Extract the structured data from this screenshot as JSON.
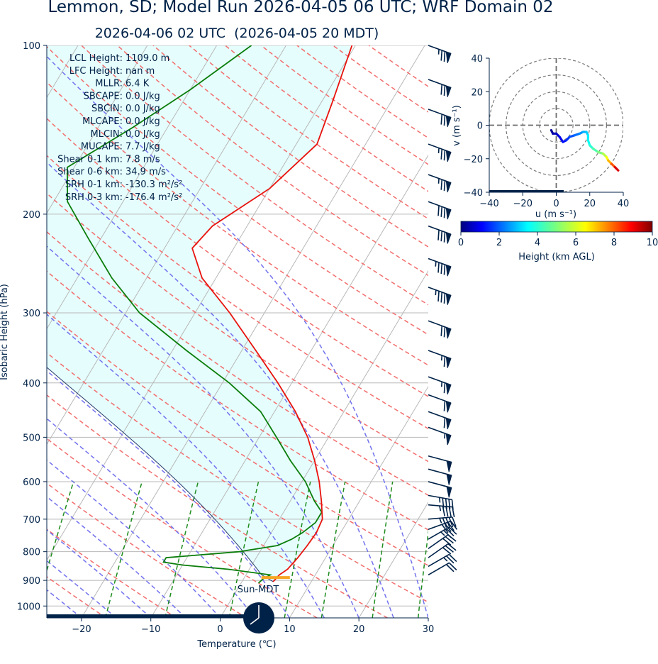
{
  "title": "Lemmon, SD; Model Run 2026-04-05 06 UTC; WRF Domain 02",
  "subtitle": "2026-04-06 02 UTC  (2026-04-05 20 MDT)",
  "colors": {
    "text": "#002248",
    "temperature": "#e8120c",
    "dewpoint": "#0a7d0a",
    "parcel_shade": "#e6fdfd",
    "dry_adiabat": "#f26d6d",
    "moist_adiabat": "#7272ee",
    "mixing_ratio": "#1e8c1e",
    "isotherm": "#b8b8b8",
    "surface": "#f6a623"
  },
  "skewt": {
    "xlabel": "Temperature (℃)",
    "ylabel": "Isobaric Height (hPa)",
    "xlim": [
      -25,
      30
    ],
    "ylim": [
      1050,
      100
    ],
    "xticks": [
      -20,
      -10,
      0,
      10,
      20,
      30
    ],
    "yticks": [
      100,
      200,
      300,
      400,
      500,
      600,
      700,
      800,
      900,
      1000
    ],
    "surface_label": "Sun-MDT",
    "stats": [
      {
        "label": "LCL Height:",
        "value": "1109.0 m"
      },
      {
        "label": "LFC Height:",
        "value": "nan m"
      },
      {
        "label": "MLLR:",
        "value": "6.4 K"
      },
      {
        "label": "SBCAPE:",
        "value": "0.0 J/kg"
      },
      {
        "label": "SBCIN:",
        "value": "0.0 J/kg"
      },
      {
        "label": "MLCAPE:",
        "value": "0.0 J/kg"
      },
      {
        "label": "MLCIN:",
        "value": "0.0 J/kg"
      },
      {
        "label": "MUCAPE:",
        "value": "7.7 J/kg"
      },
      {
        "label": "Shear 0-1 km:",
        "value": "7.8 m/s"
      },
      {
        "label": "Shear 0-6 km:",
        "value": "34.9 m/s"
      },
      {
        "label": "SRH 0-1 km:",
        "value": "-130.3 m²/s²"
      },
      {
        "label": "SRH 0-3 km:",
        "value": "-176.4 m²/s²"
      }
    ]
  },
  "chart_data": {
    "type": "line",
    "temperature": [
      {
        "p": 905,
        "t": 4.5
      },
      {
        "p": 880,
        "t": 4.8
      },
      {
        "p": 860,
        "t": 5.5
      },
      {
        "p": 820,
        "t": 6.0
      },
      {
        "p": 780,
        "t": 6.3
      },
      {
        "p": 740,
        "t": 6.5
      },
      {
        "p": 700,
        "t": 6.2
      },
      {
        "p": 650,
        "t": 4.5
      },
      {
        "p": 600,
        "t": 2.5
      },
      {
        "p": 550,
        "t": 0.0
      },
      {
        "p": 500,
        "t": -3.0
      },
      {
        "p": 450,
        "t": -7.0
      },
      {
        "p": 400,
        "t": -12.0
      },
      {
        "p": 350,
        "t": -18.0
      },
      {
        "p": 300,
        "t": -25.0
      },
      {
        "p": 260,
        "t": -32.0
      },
      {
        "p": 230,
        "t": -36.0
      },
      {
        "p": 210,
        "t": -35.0
      },
      {
        "p": 180,
        "t": -30.0
      },
      {
        "p": 150,
        "t": -27.0
      },
      {
        "p": 125,
        "t": -28.5
      },
      {
        "p": 100,
        "t": -30.5
      }
    ],
    "dewpoint": [
      {
        "p": 910,
        "t": 2.5
      },
      {
        "p": 895,
        "t": 2.8
      },
      {
        "p": 880,
        "t": 3.5
      },
      {
        "p": 860,
        "t": -3.0
      },
      {
        "p": 845,
        "t": -10.0
      },
      {
        "p": 835,
        "t": -13.0
      },
      {
        "p": 820,
        "t": -13.0
      },
      {
        "p": 800,
        "t": -3.0
      },
      {
        "p": 780,
        "t": 2.0
      },
      {
        "p": 760,
        "t": 3.5
      },
      {
        "p": 740,
        "t": 4.5
      },
      {
        "p": 710,
        "t": 5.5
      },
      {
        "p": 680,
        "t": 5.5
      },
      {
        "p": 650,
        "t": 3.5
      },
      {
        "p": 600,
        "t": 0.5
      },
      {
        "p": 550,
        "t": -3.5
      },
      {
        "p": 500,
        "t": -7.5
      },
      {
        "p": 450,
        "t": -12.0
      },
      {
        "p": 400,
        "t": -19.0
      },
      {
        "p": 350,
        "t": -28.0
      },
      {
        "p": 300,
        "t": -38.0
      },
      {
        "p": 260,
        "t": -45.0
      },
      {
        "p": 220,
        "t": -52.0
      },
      {
        "p": 190,
        "t": -58.0
      },
      {
        "p": 165,
        "t": -61.0
      },
      {
        "p": 140,
        "t": -55.0
      },
      {
        "p": 120,
        "t": -50.0
      },
      {
        "p": 100,
        "t": -45.0
      }
    ],
    "surface": {
      "p": 900,
      "t_min": 2.7,
      "t_max": 6.8
    },
    "wind_barbs": [
      {
        "p": 100,
        "dir": 250,
        "kt": 75
      },
      {
        "p": 115,
        "dir": 250,
        "kt": 70
      },
      {
        "p": 130,
        "dir": 250,
        "kt": 70
      },
      {
        "p": 150,
        "dir": 250,
        "kt": 75
      },
      {
        "p": 170,
        "dir": 250,
        "kt": 75
      },
      {
        "p": 190,
        "dir": 250,
        "kt": 80
      },
      {
        "p": 210,
        "dir": 250,
        "kt": 80
      },
      {
        "p": 240,
        "dir": 250,
        "kt": 85
      },
      {
        "p": 270,
        "dir": 250,
        "kt": 85
      },
      {
        "p": 310,
        "dir": 250,
        "kt": 70
      },
      {
        "p": 350,
        "dir": 250,
        "kt": 65
      },
      {
        "p": 390,
        "dir": 250,
        "kt": 65
      },
      {
        "p": 420,
        "dir": 250,
        "kt": 60
      },
      {
        "p": 450,
        "dir": 250,
        "kt": 60
      },
      {
        "p": 480,
        "dir": 250,
        "kt": 55
      },
      {
        "p": 540,
        "dir": 255,
        "kt": 50
      },
      {
        "p": 570,
        "dir": 255,
        "kt": 50
      },
      {
        "p": 600,
        "dir": 255,
        "kt": 50
      },
      {
        "p": 635,
        "dir": 260,
        "kt": 45
      },
      {
        "p": 660,
        "dir": 265,
        "kt": 45
      },
      {
        "p": 700,
        "dir": 275,
        "kt": 45
      },
      {
        "p": 730,
        "dir": 290,
        "kt": 40
      },
      {
        "p": 760,
        "dir": 300,
        "kt": 35
      },
      {
        "p": 790,
        "dir": 305,
        "kt": 30
      },
      {
        "p": 820,
        "dir": 305,
        "kt": 30
      },
      {
        "p": 850,
        "dir": 300,
        "kt": 25
      },
      {
        "p": 880,
        "dir": 300,
        "kt": 20
      }
    ],
    "hodograph": {
      "xlabel": "u (m s⁻¹)",
      "ylabel": "v (m s⁻¹)",
      "xlim": [
        -40,
        40
      ],
      "ylim": [
        -40,
        40
      ],
      "ticks": [
        -40,
        -20,
        0,
        20,
        40
      ],
      "rings": [
        10,
        20,
        30,
        40
      ],
      "points": [
        {
          "u": -3,
          "v": -3,
          "h": 0.1
        },
        {
          "u": -2,
          "v": -5,
          "h": 0.3
        },
        {
          "u": 0,
          "v": -5,
          "h": 0.5
        },
        {
          "u": 2,
          "v": -7,
          "h": 0.8
        },
        {
          "u": 4,
          "v": -10,
          "h": 1.1
        },
        {
          "u": 6,
          "v": -9,
          "h": 1.4
        },
        {
          "u": 8,
          "v": -7,
          "h": 1.7
        },
        {
          "u": 11,
          "v": -6,
          "h": 2.0
        },
        {
          "u": 14,
          "v": -5,
          "h": 2.3
        },
        {
          "u": 16,
          "v": -4,
          "h": 2.6
        },
        {
          "u": 18,
          "v": -4,
          "h": 2.9
        },
        {
          "u": 19,
          "v": -6,
          "h": 3.2
        },
        {
          "u": 19,
          "v": -9,
          "h": 3.5
        },
        {
          "u": 20,
          "v": -12,
          "h": 3.8
        },
        {
          "u": 22,
          "v": -14,
          "h": 4.2
        },
        {
          "u": 25,
          "v": -16,
          "h": 4.7
        },
        {
          "u": 28,
          "v": -17,
          "h": 5.3
        },
        {
          "u": 30,
          "v": -19,
          "h": 6.0
        },
        {
          "u": 31,
          "v": -21,
          "h": 6.8
        },
        {
          "u": 33,
          "v": -23,
          "h": 7.6
        },
        {
          "u": 35,
          "v": -25,
          "h": 8.6
        },
        {
          "u": 37,
          "v": -27,
          "h": 9.8
        }
      ]
    },
    "colorbar": {
      "label": "Height (km AGL)",
      "range": [
        0,
        10
      ],
      "ticks": [
        0,
        2,
        4,
        6,
        8,
        10
      ]
    }
  }
}
